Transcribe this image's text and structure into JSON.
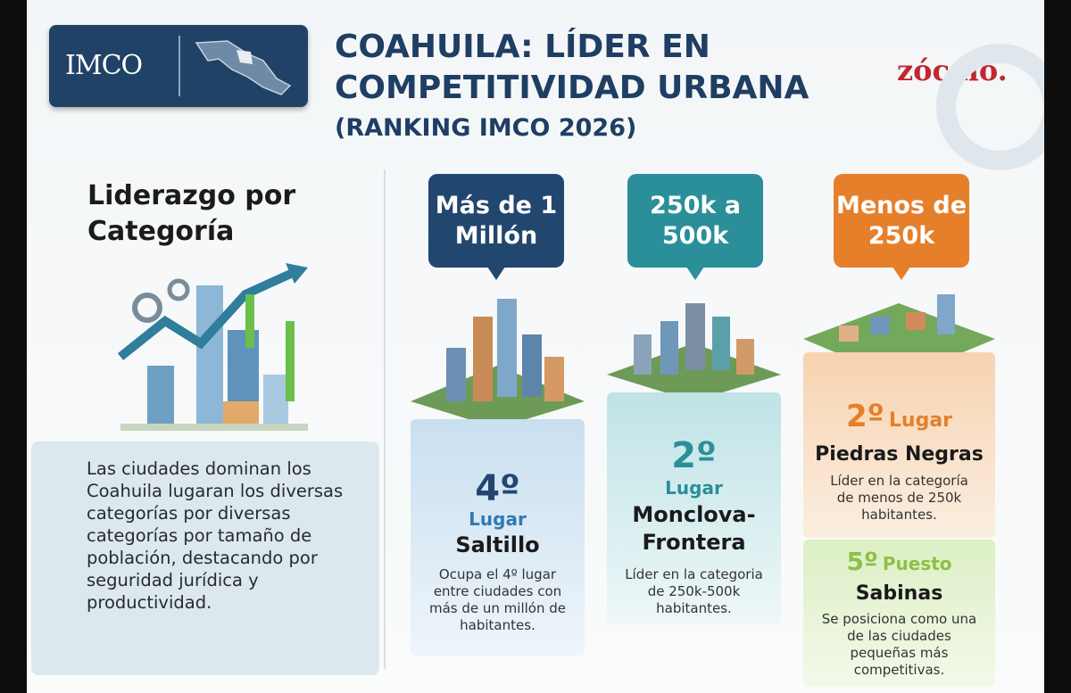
{
  "header": {
    "logo": "IMCO",
    "title_line1": "COAHUILA: LÍDER EN",
    "title_line2": "COMPETITIVIDAD URBANA",
    "subtitle": "(RANKING IMCO 2026)",
    "brand": "zócalo."
  },
  "sidebar": {
    "heading": "Liderazgo por Categoría",
    "text": "Las ciudades dominan los Coahuila lugaran los diversas categorías por diversas categorías por tamaño de población, destacando por seguridad jurídica y productividad."
  },
  "categories": [
    {
      "label": "Más de 1 Millón",
      "entries": [
        {
          "rank": "4º",
          "place": "Lugar",
          "city": "Saltillo",
          "description": "Ocupa el 4º lugar entre ciudades con más de un millón de habitantes."
        }
      ]
    },
    {
      "label": "250k a 500k",
      "entries": [
        {
          "rank": "2º",
          "place": "Lugar",
          "city": "Monclova-Frontera",
          "description": "Líder en la categoria de 250k-500k habitantes."
        }
      ]
    },
    {
      "label": "Menos de 250k",
      "entries": [
        {
          "rank": "2º",
          "place": "Lugar",
          "city": "Piedras Negras",
          "description": "Líder en la categoría de menos de 250k habitantes."
        },
        {
          "rank": "5º",
          "place": "Puesto",
          "city": "Sabinas",
          "description": "Se posiciona como una de las ciudades pequeñas más competitivas."
        }
      ]
    }
  ]
}
